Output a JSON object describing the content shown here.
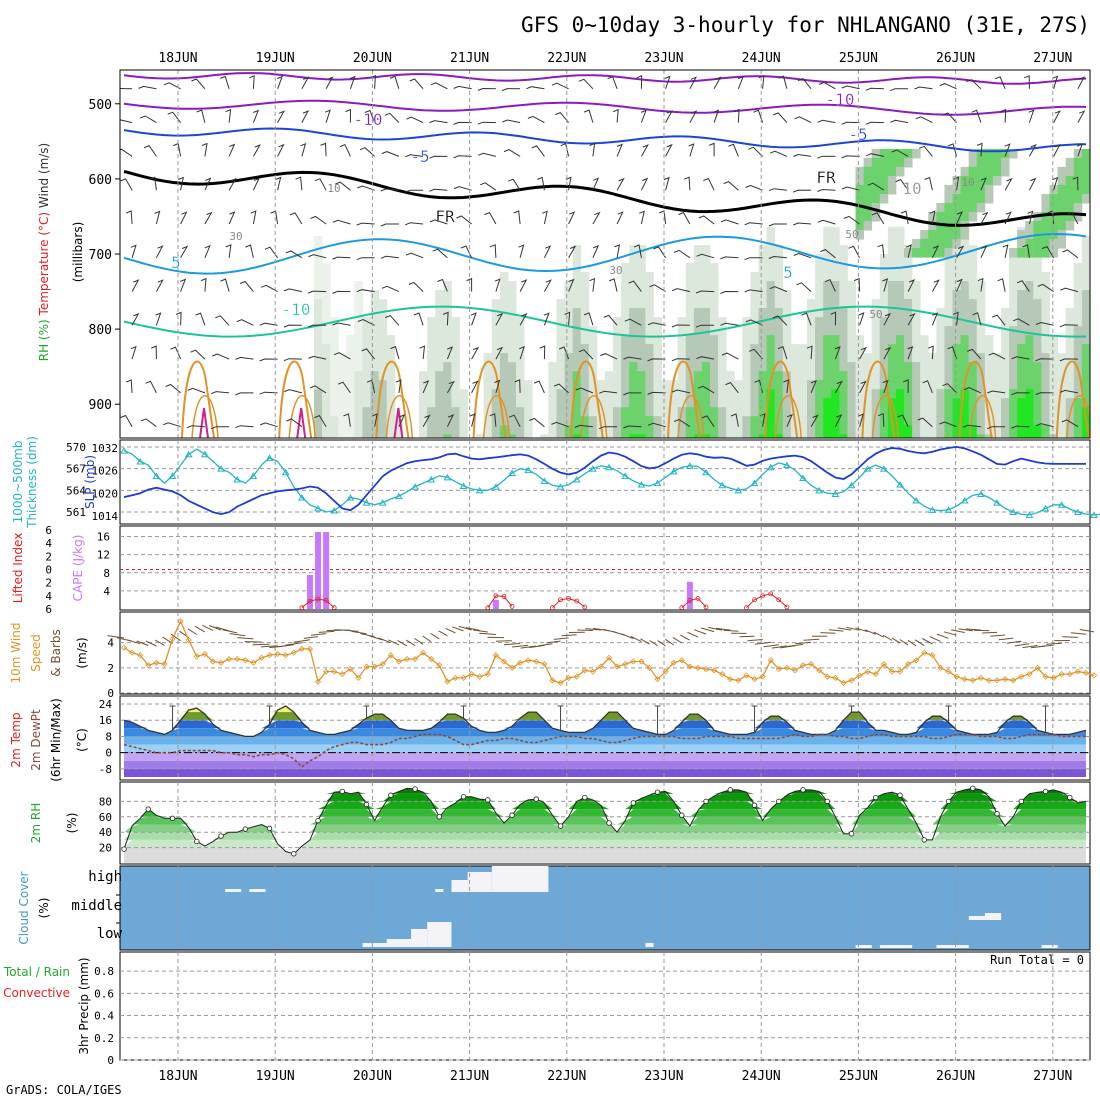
{
  "header": {
    "title": "GFS 0~10day 3-hourly for NHLANGANO (31E, 27S)",
    "footer": "GrADS: COLA/IGES"
  },
  "axis": {
    "days": [
      "18JUN",
      "19JUN",
      "20JUN",
      "21JUN",
      "22JUN",
      "23JUN",
      "24JUN",
      "25JUN",
      "26JUN",
      "27JUN"
    ]
  },
  "colors": {
    "thickness": "#22b4c4",
    "slp": "#1c3cd2",
    "cape": "#c878ff",
    "lifted": "#e02020",
    "wind_speed": "#e09428",
    "barb": "#6e5030",
    "temp_fill": "#6e9a2a",
    "dewpt": "#8a4a3a",
    "rh_fill": "#22a82a",
    "cloud_bg": "#6ea8d6",
    "cloud_blk": "#f4f4f8",
    "precip_conv": "#e02020",
    "precip_total": "#22a82a"
  },
  "chart_data": [
    {
      "id": "upper_air",
      "type": "heatmap",
      "ylabel": "(millibars)",
      "label_parts": [
        "RH (%)",
        "Temperature (°C)",
        "Wind (m/s)"
      ],
      "yticks": [
        500,
        600,
        700,
        800,
        900
      ],
      "isotherm_labels": [
        "-10",
        "-10",
        "-5",
        "-5",
        "FR",
        "FR",
        "5",
        "5",
        "-10",
        "10"
      ],
      "rh_labels": [
        "30",
        "50",
        "30",
        "50",
        "10",
        "10"
      ]
    },
    {
      "id": "slp_thickness",
      "type": "line",
      "label_parts": [
        "1000~500mb",
        "Thickness (dm)",
        "SLP (mb)"
      ],
      "left_ticks": [
        561,
        564,
        567,
        570
      ],
      "right_ticks": [
        1014,
        1020,
        1026,
        1032
      ],
      "series": [
        {
          "name": "1000~500mb Thickness (dm)",
          "axis": "left",
          "values": [
            569.5,
            569.0,
            568.0,
            567.5,
            566.0,
            565.0,
            566.0,
            567.5,
            569.0,
            569.7,
            569.0,
            568.0,
            567.0,
            566.5,
            565.5,
            565.0,
            566.0,
            567.5,
            568.5,
            568.0,
            566.5,
            564.5,
            563.0,
            562.0,
            561.5,
            561.0,
            561.2,
            562.0,
            563.0,
            562.8,
            562.3,
            562.0,
            562.3,
            562.8,
            563.2,
            563.8,
            564.5,
            565.0,
            565.5,
            566.0,
            565.8,
            565.2,
            564.6,
            564.2,
            564.0,
            564.0,
            564.5,
            565.4,
            566.4,
            567.0,
            566.8,
            566.2,
            565.3,
            564.7,
            564.5,
            564.8,
            565.5,
            566.3,
            567.0,
            567.4,
            567.2,
            566.7,
            566.0,
            565.3,
            564.8,
            564.6,
            565.0,
            565.8,
            566.6,
            567.2,
            567.4,
            567.3,
            566.5,
            565.5,
            564.7,
            564.3,
            564.0,
            564.2,
            565.0,
            566.2,
            567.2,
            567.8,
            567.5,
            566.8,
            565.7,
            564.7,
            564.0,
            563.6,
            563.5,
            563.8,
            564.7,
            565.8,
            567.0,
            567.5,
            567.0,
            566.0,
            564.8,
            563.6,
            562.6,
            561.8,
            561.3,
            561.2,
            561.3,
            561.8,
            562.6,
            563.3,
            563.5,
            563.0,
            562.3,
            561.5,
            561.0,
            560.7,
            560.6,
            560.9,
            561.5,
            562.0,
            562.0,
            561.4,
            561.0,
            560.7,
            560.6,
            560.7,
            561.0,
            561.6
          ]
        },
        {
          "name": "SLP (mb)",
          "axis": "right",
          "values": [
            1019,
            1019.5,
            1020,
            1021,
            1021.5,
            1021,
            1020.5,
            1019.5,
            1018,
            1017,
            1016,
            1015,
            1014.5,
            1015,
            1016.5,
            1017.5,
            1018.5,
            1019.5,
            1020,
            1020.5,
            1020.8,
            1021,
            1021.3,
            1021.8,
            1021.5,
            1020,
            1018,
            1016,
            1015.5,
            1017,
            1019.5,
            1022,
            1024.5,
            1026,
            1027,
            1028,
            1028.5,
            1028.8,
            1029,
            1029.5,
            1030.3,
            1030.5,
            1029.8,
            1029.2,
            1029,
            1029.3,
            1029.5,
            1029.8,
            1030.1,
            1030.3,
            1030,
            1029,
            1027.8,
            1026.5,
            1025.5,
            1025,
            1025.5,
            1026.8,
            1028.5,
            1030,
            1030.8,
            1030.5,
            1029.7,
            1028.5,
            1027.2,
            1026.6,
            1026.9,
            1028,
            1029.2,
            1030.2,
            1030.6,
            1030.3,
            1029.7,
            1029.4,
            1029.5,
            1029.2,
            1028.3,
            1027.3,
            1027.6,
            1028.6,
            1029.2,
            1029.5,
            1029.8,
            1030,
            1029.6,
            1028.5,
            1027,
            1025.5,
            1024.2,
            1023.8,
            1025,
            1027,
            1029,
            1030.5,
            1031.5,
            1032,
            1031.8,
            1031.2,
            1030.8,
            1030.6,
            1031,
            1031.6,
            1032,
            1032.3,
            1031.9,
            1031.1,
            1030.2,
            1029,
            1027.8,
            1027.6,
            1028.5,
            1029.2,
            1028.7,
            1028.2,
            1027.9,
            1027.8,
            1027.8,
            1027.8,
            1027.8,
            1027.8
          ]
        }
      ]
    },
    {
      "id": "cape_li",
      "type": "bar",
      "label_parts": [
        "Lifted Index",
        "CAPE (J/kg)"
      ],
      "left_ticks": [
        6,
        4,
        2,
        0,
        -2,
        -4,
        -6
      ],
      "right_ticks": [
        4,
        8,
        12,
        16
      ],
      "cape_bars": [
        {
          "t": 23,
          "v": 7.5
        },
        {
          "t": 24,
          "v": 17
        },
        {
          "t": 25,
          "v": 17
        },
        {
          "t": 46,
          "v": 2
        },
        {
          "t": 70,
          "v": 6
        }
      ],
      "lifted_index_segments": [
        {
          "t": [
            22,
            23,
            24,
            25,
            26
          ],
          "v": [
            5.8,
            4.8,
            4.5,
            4.7,
            5.8
          ]
        },
        {
          "t": [
            45,
            46,
            47,
            48
          ],
          "v": [
            5.8,
            4.0,
            4.1,
            5.6
          ]
        },
        {
          "t": [
            53,
            54,
            55,
            56,
            57
          ],
          "v": [
            5.8,
            4.6,
            4.4,
            4.8,
            5.7
          ]
        },
        {
          "t": [
            69,
            70,
            71,
            72
          ],
          "v": [
            5.8,
            4.7,
            4.4,
            5.7
          ]
        },
        {
          "t": [
            77,
            78,
            79,
            80,
            81,
            82
          ],
          "v": [
            5.8,
            4.6,
            4.0,
            3.7,
            4.6,
            5.7
          ]
        }
      ]
    },
    {
      "id": "wind10m",
      "type": "line",
      "label_parts": [
        "10m Wind",
        "Speed",
        "& Barbs",
        "(m/s)"
      ],
      "yticks": [
        0,
        2,
        4
      ],
      "series": [
        {
          "name": "10m Wind Speed",
          "values": [
            3.6,
            3.2,
            3.0,
            2.2,
            2.4,
            2.3,
            4.3,
            5.7,
            4.2,
            2.9,
            3.1,
            2.5,
            2.4,
            2.7,
            2.7,
            2.6,
            2.4,
            2.8,
            3.0,
            3.1,
            3.0,
            3.2,
            3.5,
            3.5,
            0.9,
            1.7,
            1.7,
            1.5,
            1.9,
            1.2,
            2.1,
            2.1,
            2.3,
            3.0,
            2.5,
            2.7,
            2.7,
            3.2,
            2.7,
            2.2,
            0.9,
            1.2,
            1.2,
            1.5,
            1.3,
            1.5,
            3.0,
            2.5,
            2.0,
            2.4,
            2.6,
            2.5,
            2.3,
            1.0,
            0.8,
            1.2,
            1.3,
            1.8,
            1.7,
            2.1,
            2.8,
            2.1,
            2.3,
            2.5,
            2.5,
            2.0,
            1.1,
            1.7,
            2.4,
            2.6,
            2.1,
            2.0,
            1.9,
            1.8,
            1.5,
            1.1,
            1.0,
            1.4,
            1.1,
            1.3,
            2.6,
            1.9,
            2.0,
            1.8,
            2.2,
            2.3,
            1.8,
            1.3,
            1.2,
            0.8,
            1.0,
            1.4,
            1.7,
            1.5,
            2.3,
            1.7,
            1.7,
            2.3,
            2.6,
            3.2,
            3.0,
            2.0,
            1.7,
            1.3,
            1.1,
            1.0,
            1.2,
            1.0,
            1.0,
            1.1,
            1.0,
            1.3,
            1.5,
            2.0,
            1.3,
            1.2,
            1.5,
            1.5,
            1.7,
            1.6,
            1.4
          ]
        }
      ]
    },
    {
      "id": "temp2m",
      "type": "area",
      "label_parts": [
        "2m Temp",
        "2m DewPt",
        "(6hr Min/Max)",
        "(°C)"
      ],
      "yticks": [
        -8,
        0,
        8,
        16,
        24
      ],
      "series": [
        {
          "name": "2m Temp",
          "values": [
            16,
            15,
            13,
            11,
            10,
            9,
            11,
            16,
            21,
            22,
            19,
            14,
            11,
            10,
            9,
            8,
            8,
            10,
            14,
            21,
            23,
            20,
            15,
            11,
            10,
            9,
            9,
            10,
            11,
            14,
            17,
            19,
            19,
            16,
            12,
            11,
            11,
            11,
            12,
            15,
            19,
            19,
            17,
            13,
            11,
            10,
            10,
            11,
            13,
            17,
            20,
            20,
            16,
            12,
            11,
            10,
            10,
            10,
            12,
            16,
            20,
            20,
            16,
            12,
            11,
            10,
            9,
            9,
            11,
            15,
            19,
            19,
            16,
            11,
            10,
            9,
            9,
            9,
            10,
            15,
            18,
            18,
            15,
            11,
            10,
            9,
            9,
            9,
            11,
            16,
            20,
            20,
            15,
            11,
            11,
            10,
            9,
            9,
            10,
            15,
            18,
            18,
            15,
            11,
            10,
            9,
            9,
            9,
            10,
            15,
            18,
            18,
            15,
            11,
            10,
            9,
            9,
            9,
            10,
            11
          ]
        },
        {
          "name": "2m DewPt",
          "values": [
            4,
            3,
            2,
            1,
            0,
            0,
            0,
            1,
            1,
            1,
            1,
            1,
            0,
            0,
            -1,
            -1,
            -2,
            -1,
            -1,
            0,
            -1,
            -3,
            -7,
            -4,
            -2,
            1,
            3,
            4,
            5,
            5,
            4,
            4,
            4,
            5,
            7,
            7,
            8,
            9,
            9,
            9,
            8,
            6,
            4,
            4,
            5,
            6,
            6,
            7,
            7,
            6,
            5,
            5,
            6,
            7,
            8,
            8,
            8,
            7,
            7,
            6,
            5,
            5,
            6,
            7,
            8,
            8,
            8,
            8,
            8,
            7,
            7,
            7,
            8,
            8,
            8,
            8,
            7,
            7,
            7,
            7,
            7,
            7,
            8,
            9,
            8,
            8,
            9,
            9,
            8,
            8,
            7,
            7,
            8,
            9,
            9,
            8,
            8,
            8,
            8,
            8,
            7,
            7,
            8,
            9,
            9,
            9,
            8,
            8,
            8,
            7,
            7,
            8,
            9,
            9,
            9,
            9,
            8,
            8,
            8,
            8
          ]
        }
      ]
    },
    {
      "id": "rh2m",
      "type": "area",
      "label_parts": [
        "2m RH",
        "(%)"
      ],
      "yticks": [
        20,
        40,
        60,
        80
      ],
      "series": [
        {
          "name": "2m RH",
          "values": [
            18,
            48,
            58,
            70,
            62,
            58,
            58,
            58,
            46,
            28,
            22,
            28,
            35,
            40,
            40,
            44,
            47,
            50,
            45,
            25,
            15,
            12,
            22,
            30,
            55,
            75,
            92,
            93,
            90,
            92,
            76,
            55,
            73,
            88,
            93,
            97,
            96,
            92,
            80,
            60,
            72,
            78,
            86,
            86,
            83,
            82,
            65,
            52,
            62,
            76,
            82,
            83,
            78,
            62,
            48,
            60,
            80,
            85,
            82,
            75,
            52,
            40,
            55,
            78,
            84,
            88,
            92,
            93,
            80,
            62,
            48,
            68,
            80,
            87,
            92,
            95,
            95,
            92,
            75,
            55,
            70,
            80,
            88,
            93,
            95,
            95,
            93,
            80,
            60,
            38,
            38,
            62,
            72,
            85,
            90,
            92,
            88,
            70,
            52,
            30,
            30,
            60,
            80,
            92,
            95,
            97,
            95,
            86,
            64,
            48,
            60,
            80,
            90,
            92,
            93,
            95,
            92,
            85,
            78,
            80
          ]
        }
      ]
    },
    {
      "id": "cloud",
      "type": "heatmap",
      "label_parts": [
        "Cloud Cover",
        "(%)"
      ],
      "yticks": [
        "high",
        "middle",
        "low"
      ]
    },
    {
      "id": "precip",
      "type": "bar",
      "label_parts": [
        "Total / Rain",
        "Convective",
        "3hr Precip (mm)"
      ],
      "yticks": [
        0,
        0.2,
        0.4,
        0.6,
        0.8
      ],
      "ylim": [
        0,
        0.9
      ],
      "run_total_label": "Run Total = 0",
      "values": []
    }
  ]
}
